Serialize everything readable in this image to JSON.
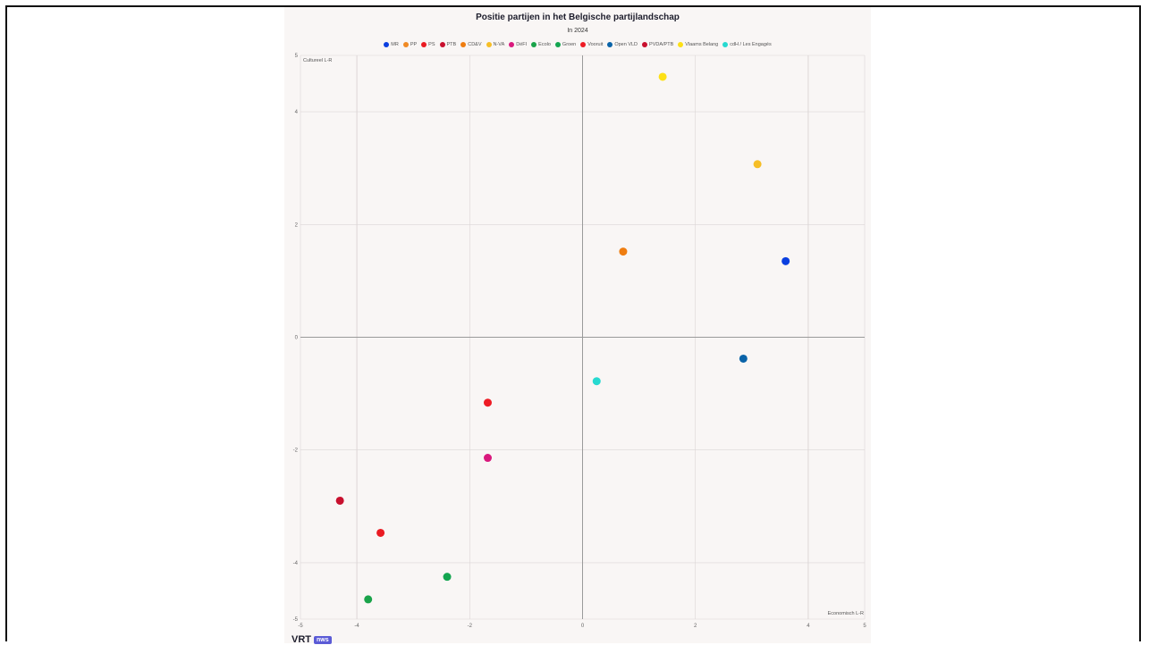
{
  "chart_data": {
    "type": "scatter",
    "title": "Positie partijen in het Belgische partijlandschap",
    "subtitle": "In 2024",
    "xlabel": "Economisch L-R",
    "ylabel": "Cultureel L-R",
    "xlim": [
      -5,
      5
    ],
    "ylim": [
      -5,
      5
    ],
    "x_ticks": [
      -5,
      -4,
      -2,
      0,
      2,
      4,
      5
    ],
    "y_ticks": [
      -5,
      -4,
      -2,
      0,
      2,
      4,
      5
    ],
    "tick_labels": {
      "x": [
        "-5",
        "-4",
        "-2",
        "0",
        "2",
        "4",
        "5"
      ],
      "y": [
        "-5",
        "-4",
        "-2",
        "0",
        "2",
        "4",
        "5"
      ]
    },
    "grid": true,
    "legend_position": "top",
    "series": [
      {
        "name": "MR",
        "color": "#0b3fe0",
        "points": [
          [
            3.6,
            1.35
          ]
        ]
      },
      {
        "name": "PP",
        "color": "#f08a24",
        "points": []
      },
      {
        "name": "PS",
        "color": "#ea1b22",
        "points": [
          [
            -3.58,
            -3.47
          ]
        ]
      },
      {
        "name": "PTB",
        "color": "#c8102e",
        "points": [
          [
            -4.3,
            -2.9
          ]
        ]
      },
      {
        "name": "CD&V",
        "color": "#ef7d10",
        "points": [
          [
            0.72,
            1.52
          ]
        ]
      },
      {
        "name": "N-VA",
        "color": "#f6be26",
        "points": [
          [
            3.1,
            3.07
          ]
        ]
      },
      {
        "name": "DéFI",
        "color": "#d9197d",
        "points": [
          [
            -1.68,
            -2.14
          ]
        ]
      },
      {
        "name": "Ecolo",
        "color": "#1aa34a",
        "points": [
          [
            -3.8,
            -4.65
          ]
        ]
      },
      {
        "name": "Groen",
        "color": "#14a550",
        "points": [
          [
            -2.4,
            -4.25
          ]
        ]
      },
      {
        "name": "Vooruit",
        "color": "#ee1c25",
        "points": [
          [
            -1.68,
            -1.16
          ]
        ]
      },
      {
        "name": "Open VLD",
        "color": "#0a63a8",
        "points": [
          [
            2.85,
            -0.38
          ]
        ]
      },
      {
        "name": "PVDA/PTB",
        "color": "#c8102e",
        "points": []
      },
      {
        "name": "Vlaams Belang",
        "color": "#fde016",
        "points": [
          [
            1.42,
            4.62
          ]
        ]
      },
      {
        "name": "cdH / Les Engagés",
        "color": "#27d9d0",
        "points": [
          [
            0.25,
            -0.78
          ]
        ]
      }
    ]
  },
  "brand": {
    "mark": "VRT",
    "badge": "nws"
  }
}
